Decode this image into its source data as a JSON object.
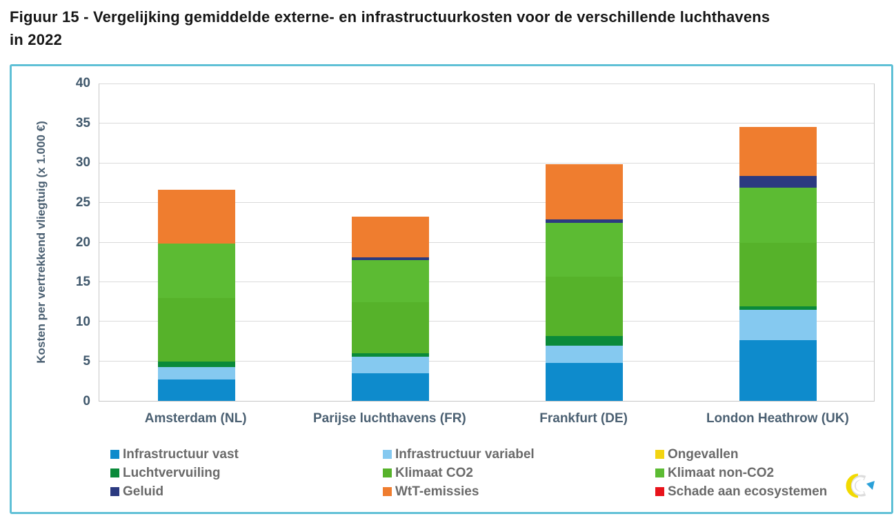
{
  "title": {
    "line1": "Figuur 15 - Vergelijking gemiddelde externe- en infrastructuurkosten voor de verschillende luchthavens",
    "line2": "in 2022"
  },
  "chart_data": {
    "type": "bar",
    "stacked": true,
    "title": "",
    "xlabel": "",
    "ylabel": "Kosten per vertrekkend vliegtuig (x 1.000 €)",
    "ylim": [
      0,
      40
    ],
    "yticks": [
      0,
      5,
      10,
      15,
      20,
      25,
      30,
      35,
      40
    ],
    "grid": true,
    "legend_position": "bottom",
    "categories": [
      "Amsterdam (NL)",
      "Parijse luchthavens (FR)",
      "Frankfurt (DE)",
      "London Heathrow (UK)"
    ],
    "series": [
      {
        "name": "Infrastructuur vast",
        "color": "#0e8bcc",
        "values": [
          2.7,
          3.5,
          4.8,
          7.7
        ]
      },
      {
        "name": "Infrastructuur variabel",
        "color": "#85c9f0",
        "values": [
          1.6,
          2.1,
          2.2,
          3.8
        ]
      },
      {
        "name": "Ongevallen",
        "color": "#f2d412",
        "values": [
          0,
          0,
          0,
          0
        ]
      },
      {
        "name": "Luchtvervuiling",
        "color": "#0a8a3a",
        "values": [
          0.7,
          0.4,
          1.2,
          0.4
        ]
      },
      {
        "name": "Klimaat CO2",
        "color": "#56b22a",
        "values": [
          8.0,
          6.5,
          7.5,
          8.1
        ]
      },
      {
        "name": "Klimaat non-CO2",
        "color": "#5cbb33",
        "values": [
          6.9,
          5.3,
          6.8,
          6.9
        ]
      },
      {
        "name": "Geluid",
        "color": "#2b3a80",
        "values": [
          0,
          0.3,
          0.4,
          1.5
        ]
      },
      {
        "name": "WtT-emissies",
        "color": "#ef7d2f",
        "values": [
          6.8,
          5.2,
          7.0,
          6.2
        ]
      },
      {
        "name": "Schade aan ecosystemen",
        "color": "#e8131b",
        "values": [
          0,
          0,
          0,
          0
        ]
      }
    ],
    "stack_totals": [
      26.7,
      23.3,
      29.9,
      34.6
    ]
  },
  "logo": {
    "name": "CE Delft logo"
  }
}
